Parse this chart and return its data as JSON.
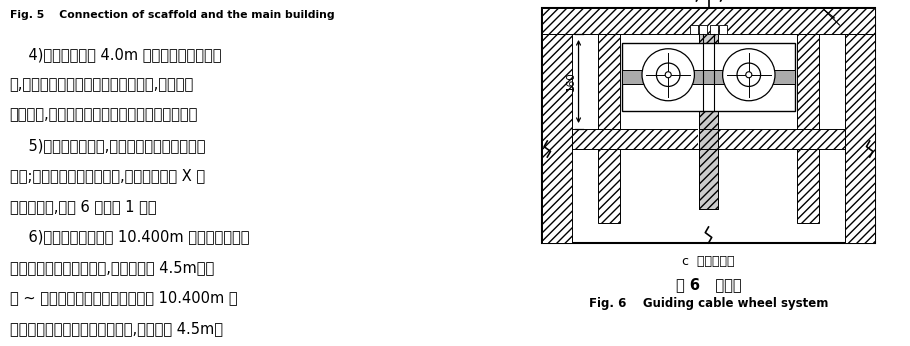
{
  "bg_color": "#ffffff",
  "left_panel": {
    "fig5_caption": "Fig. 5    Connection of scaffold and the main building",
    "lines": [
      "    4)外脚手架预留 4.0m 宽的玻璃垂直运输通",
      "道,通道内水平小横杆不向玻璃面挑出,与外架内",
      "立杆齐平,保证玻璃能从幕墙下部垂直运至顶部。",
      "    5)为保证架体稳定,内、外脚手架要设置横向",
      "斜撑;横向斜撑应在同一节间,由底至顶层呈 X 字",
      "形连续布置,每隔 6 跨设置 1 道。",
      "    6)内、外脚手架要与 10.400m 标高的通长钢横",
      "梁和顶部通长钢横梁拉接,拉接间距为 4.5m。在",
      "㊩ ~ ㊿轴内、外脚手架还应增加与 10.400m 上",
      "一层的拱形通长钢彩带进行拉接,拉接间距 4.5m。"
    ]
  },
  "right_panel": {
    "subcaption": "c  导索轮系统",
    "fig6_title": "图 6   导索轮",
    "fig6_caption": "Fig. 6    Guiding cable wheel system",
    "dim_label": "160"
  }
}
